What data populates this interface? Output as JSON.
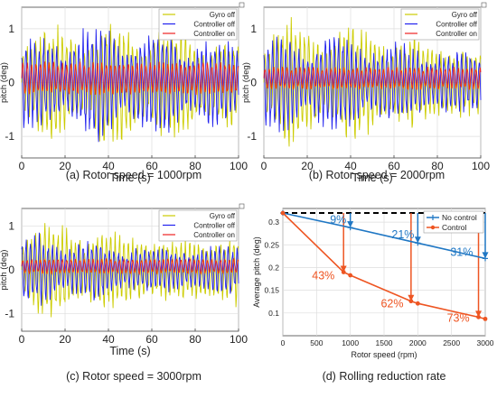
{
  "chart_data": [
    {
      "type": "line",
      "caption": "(a) Rotor speed = 1000rpm",
      "xlabel": "Time (s)",
      "ylabel": "pitch (deg)",
      "xlim": [
        0,
        100
      ],
      "ylim": [
        -1.4,
        1.4
      ],
      "xticks": [
        0,
        20,
        40,
        60,
        80,
        100
      ],
      "yticks": [
        -1,
        0,
        1
      ],
      "grid": true,
      "legend_position": "top-right",
      "series": [
        {
          "name": "Gyro off",
          "color": "#cccc00",
          "amplitude": 1.3
        },
        {
          "name": "Controller off",
          "color": "#2222ee",
          "amplitude": 1.15
        },
        {
          "name": "Controller on",
          "color": "#ee2222",
          "amplitude": 0.32
        }
      ]
    },
    {
      "type": "line",
      "caption": "(b) Rotor speed = 2000rpm",
      "xlabel": "Time (s)",
      "ylabel": "pitch (deg)",
      "xlim": [
        0,
        100
      ],
      "ylim": [
        -1.4,
        1.4
      ],
      "xticks": [
        0,
        20,
        40,
        60,
        80,
        100
      ],
      "yticks": [
        -1,
        0,
        1
      ],
      "grid": true,
      "legend_position": "top-right",
      "series": [
        {
          "name": "Gyro off",
          "color": "#cccc00",
          "amplitude": 1.3
        },
        {
          "name": "Controller off",
          "color": "#2222ee",
          "amplitude": 1.05
        },
        {
          "name": "Controller on",
          "color": "#ee2222",
          "amplitude": 0.22
        }
      ]
    },
    {
      "type": "line",
      "caption": "(c) Rotor speed = 3000rpm",
      "xlabel": "Time (s)",
      "ylabel": "pitch (deg)",
      "xlim": [
        0,
        100
      ],
      "ylim": [
        -1.4,
        1.4
      ],
      "xticks": [
        0,
        20,
        40,
        60,
        80,
        100
      ],
      "yticks": [
        -1,
        0,
        1
      ],
      "grid": true,
      "legend_position": "top-right",
      "series": [
        {
          "name": "Gyro off",
          "color": "#cccc00",
          "amplitude": 1.35
        },
        {
          "name": "Controller off",
          "color": "#2222ee",
          "amplitude": 0.95
        },
        {
          "name": "Controller on",
          "color": "#ee2222",
          "amplitude": 0.18
        }
      ]
    },
    {
      "type": "line",
      "caption": "(d) Rolling reduction rate",
      "xlabel": "Rotor speed (rpm)",
      "ylabel": "Average pitch (deg)",
      "xlim": [
        0,
        3000
      ],
      "ylim": [
        0.05,
        0.33
      ],
      "xticks": [
        0,
        500,
        1000,
        1500,
        2000,
        2500,
        3000
      ],
      "yticks": [
        0.1,
        0.15,
        0.2,
        0.25,
        0.3
      ],
      "grid": true,
      "legend_position": "top-right",
      "baseline": 0.32,
      "series": [
        {
          "name": "No control",
          "color": "#1f77c4",
          "x": [
            0,
            1000,
            2000,
            3000
          ],
          "y": [
            0.32,
            0.288,
            0.254,
            0.22
          ]
        },
        {
          "name": "Control",
          "color": "#ee5522",
          "x": [
            0,
            900,
            1000,
            1900,
            2000,
            2900,
            3000
          ],
          "y": [
            0.32,
            0.19,
            0.183,
            0.126,
            0.121,
            0.091,
            0.087
          ]
        }
      ],
      "annotations": [
        {
          "text": "9%",
          "color": "#1f77c4"
        },
        {
          "text": "21%",
          "color": "#1f77c4"
        },
        {
          "text": "31%",
          "color": "#1f77c4"
        },
        {
          "text": "43%",
          "color": "#ee5522"
        },
        {
          "text": "62%",
          "color": "#ee5522"
        },
        {
          "text": "73%",
          "color": "#ee5522"
        }
      ]
    }
  ]
}
